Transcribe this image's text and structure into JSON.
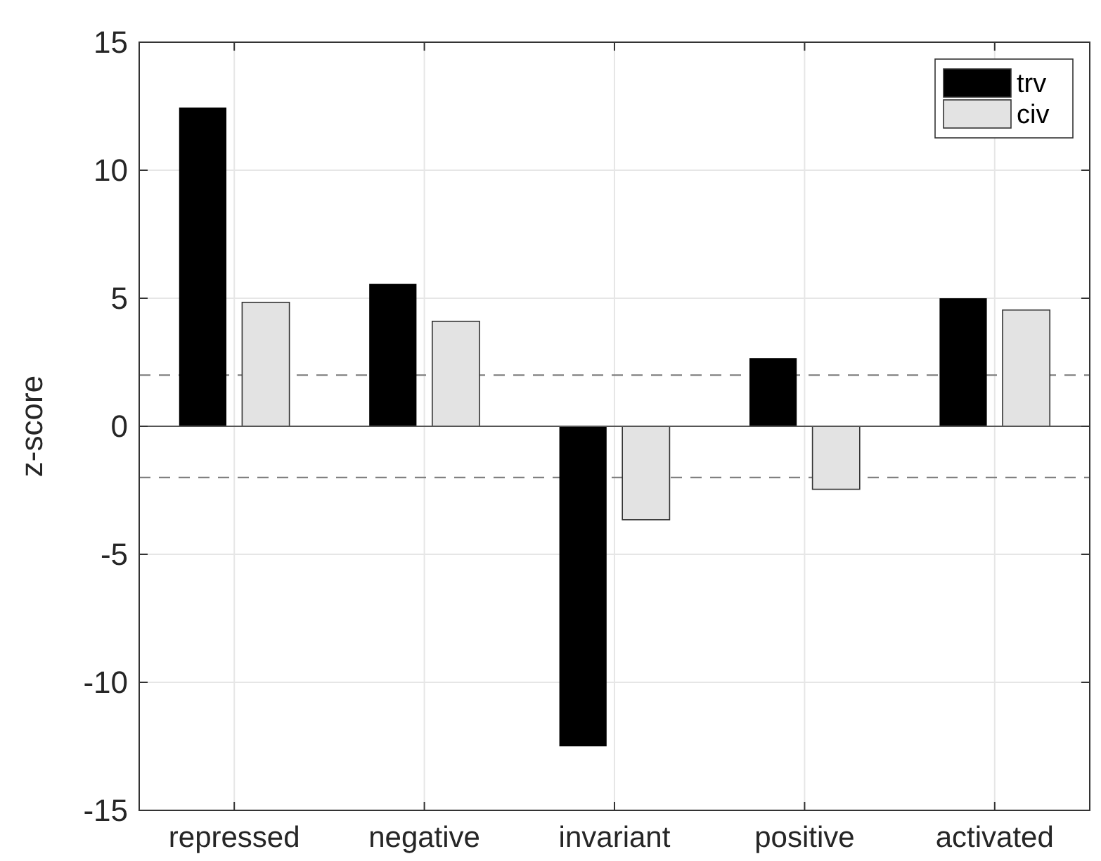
{
  "chart_data": {
    "type": "bar",
    "ylabel": "z-score",
    "categories": [
      "repressed",
      "negative",
      "invariant",
      "positive",
      "activated"
    ],
    "series": [
      {
        "name": "trv",
        "color": "#000000",
        "values": [
          12.45,
          5.56,
          -12.5,
          2.66,
          5.0
        ]
      },
      {
        "name": "civ",
        "color": "#e3e3e3",
        "values": [
          4.84,
          4.1,
          -3.65,
          -2.46,
          4.54
        ]
      }
    ],
    "ylim": [
      -15,
      15
    ],
    "yticks": [
      -15,
      -10,
      -5,
      0,
      5,
      10,
      15
    ],
    "grid": true,
    "legend": "top right",
    "ref_lines": [
      {
        "axis": "y",
        "value": 2,
        "color": "#777777",
        "line_style": "dashed"
      },
      {
        "axis": "y",
        "value": -2,
        "color": "#777777",
        "line_style": "dashed"
      }
    ]
  }
}
